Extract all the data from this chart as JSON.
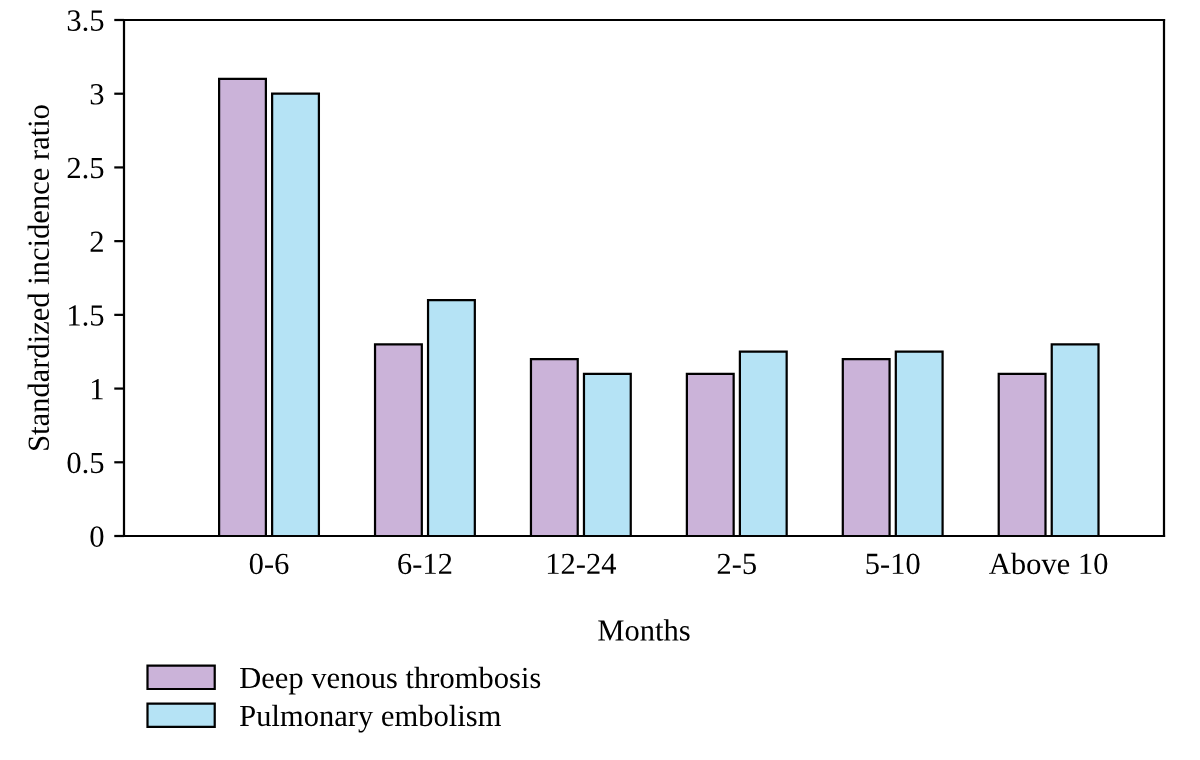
{
  "chart_data": {
    "type": "bar",
    "xlabel": "Months",
    "ylabel": "Standardized incidence ratio",
    "categories": [
      "0-6",
      "6-12",
      "12-24",
      "2-5",
      "5-10",
      "Above 10"
    ],
    "series": [
      {
        "name": "Deep venous thrombosis",
        "color": "#cbb3d9",
        "values": [
          3.1,
          1.3,
          1.2,
          1.1,
          1.2,
          1.1
        ]
      },
      {
        "name": "Pulmonary embolism",
        "color": "#b5e3f5",
        "values": [
          3.0,
          1.6,
          1.1,
          1.25,
          1.25,
          1.3
        ]
      }
    ],
    "ylim": [
      0,
      3.5
    ],
    "yticks": [
      0,
      0.5,
      1,
      1.5,
      2,
      2.5,
      3,
      3.5
    ],
    "legend": "bottom left"
  }
}
